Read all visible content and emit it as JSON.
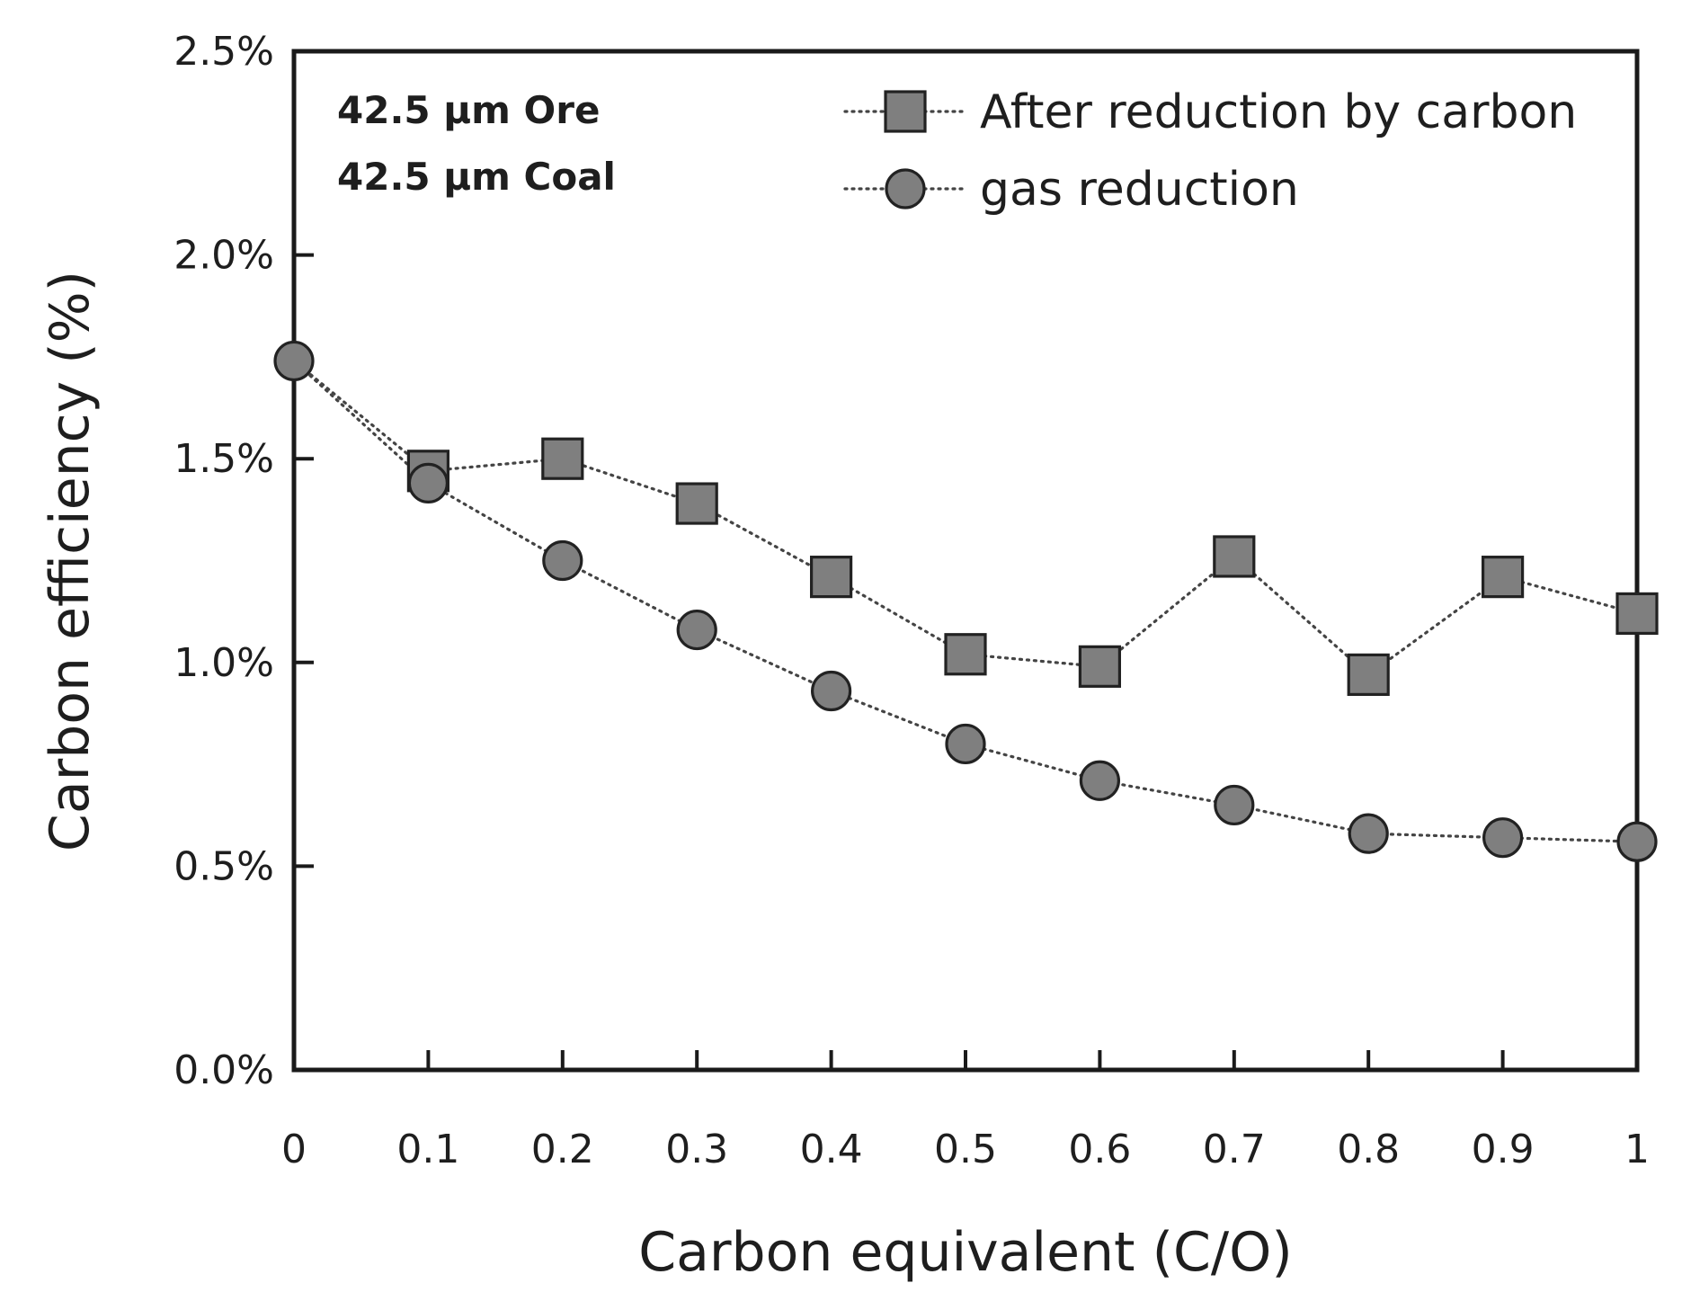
{
  "chart_data": {
    "type": "line",
    "title": "",
    "xlabel": "Carbon equivalent (C/O)",
    "ylabel": "Carbon efficiency (%)",
    "xlim": [
      0,
      1
    ],
    "ylim": [
      0,
      2.5
    ],
    "x_ticks": [
      0,
      0.1,
      0.2,
      0.3,
      0.4,
      0.5,
      0.6,
      0.7,
      0.8,
      0.9,
      1
    ],
    "x_tick_labels": [
      "0",
      "0.1",
      "0.2",
      "0.3",
      "0.4",
      "0.5",
      "0.6",
      "0.7",
      "0.8",
      "0.9",
      "1"
    ],
    "y_ticks": [
      0,
      0.5,
      1.0,
      1.5,
      2.0,
      2.5
    ],
    "y_tick_labels": [
      "0.0%",
      "0.5%",
      "1.0%",
      "1.5%",
      "2.0%",
      "2.5%"
    ],
    "grid": false,
    "legend_position": "top-right",
    "annotations": [
      "42.5 µm Ore",
      "42.5 µm Coal"
    ],
    "series": [
      {
        "name": "After reduction by carbon",
        "marker": "square",
        "line_style": "dotted",
        "color": "#7f7f7f",
        "x": [
          0,
          0.1,
          0.2,
          0.3,
          0.4,
          0.5,
          0.6,
          0.7,
          0.8,
          0.9,
          1
        ],
        "values": [
          1.74,
          1.47,
          1.5,
          1.39,
          1.21,
          1.02,
          0.99,
          1.26,
          0.97,
          1.21,
          1.12
        ]
      },
      {
        "name": "gas reduction",
        "marker": "circle",
        "line_style": "dotted",
        "color": "#7f7f7f",
        "x": [
          0,
          0.1,
          0.2,
          0.3,
          0.4,
          0.5,
          0.6,
          0.7,
          0.8,
          0.9,
          1
        ],
        "values": [
          1.74,
          1.44,
          1.25,
          1.08,
          0.93,
          0.8,
          0.71,
          0.65,
          0.58,
          0.57,
          0.56
        ]
      }
    ]
  }
}
